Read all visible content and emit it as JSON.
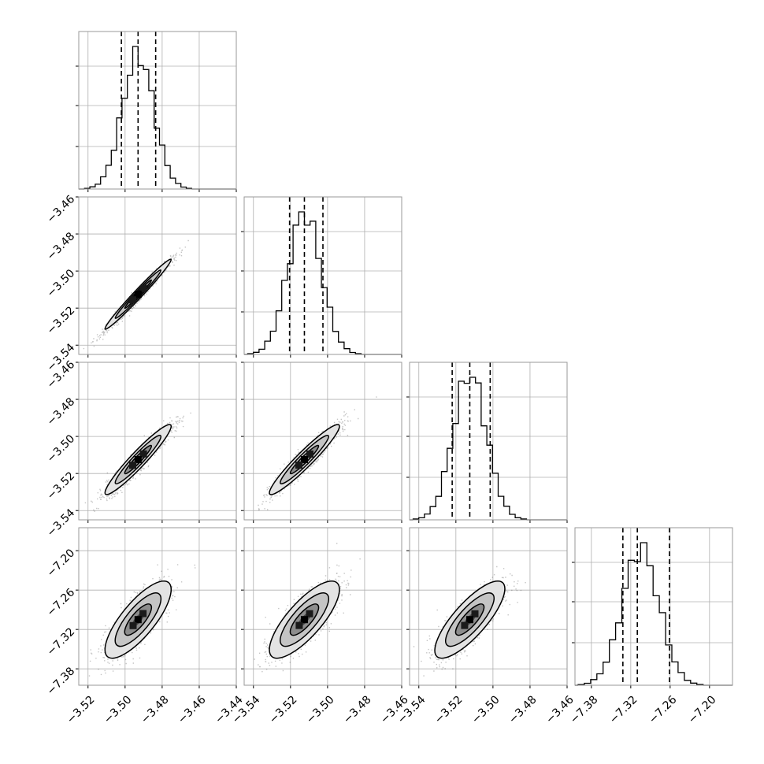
{
  "chart_data": {
    "type": "corner",
    "title": "",
    "parameters": [
      {
        "name": "",
        "range": [
          -3.525,
          -3.44
        ],
        "ticks": [
          -3.52,
          -3.5,
          -3.48,
          -3.46,
          -3.44
        ],
        "tick_labels": [
          "−3.52",
          "−3.50",
          "−3.48",
          "−3.46",
          "−3.44"
        ],
        "center": -3.493,
        "sigma": 0.0085,
        "quantiles": [
          -3.502,
          -3.493,
          -3.4835
        ]
      },
      {
        "name": "",
        "range": [
          -3.545,
          -3.46
        ],
        "ticks": [
          -3.54,
          -3.52,
          -3.5,
          -3.48,
          -3.46
        ],
        "tick_labels": [
          "−3.54",
          "−3.52",
          "−3.50",
          "−3.48",
          "−3.46"
        ],
        "center": -3.5125,
        "sigma": 0.009,
        "quantiles": [
          -3.5205,
          -3.5125,
          -3.5025
        ]
      },
      {
        "name": "",
        "range": [
          -3.545,
          -3.46
        ],
        "ticks": [
          -3.54,
          -3.52,
          -3.5,
          -3.48,
          -3.46
        ],
        "tick_labels": [
          "−3.54",
          "−3.52",
          "−3.50",
          "−3.48",
          "−3.46"
        ],
        "center": -3.5125,
        "sigma": 0.009,
        "quantiles": [
          -3.522,
          -3.5125,
          -3.5015
        ]
      },
      {
        "name": "",
        "range": [
          -7.405,
          -7.165
        ],
        "ticks": [
          -7.38,
          -7.32,
          -7.26,
          -7.2
        ],
        "tick_labels": [
          "−7.38",
          "−7.32",
          "−7.26",
          "−7.20"
        ],
        "center": -7.305,
        "sigma": 0.028,
        "quantiles": [
          -7.332,
          -7.31,
          -7.261
        ]
      }
    ],
    "correlations": [
      {
        "i": 1,
        "j": 0,
        "rho": 0.985
      },
      {
        "i": 2,
        "j": 0,
        "rho": 0.95
      },
      {
        "i": 2,
        "j": 1,
        "rho": 0.95
      },
      {
        "i": 3,
        "j": 0,
        "rho": 0.78
      },
      {
        "i": 3,
        "j": 1,
        "rho": 0.78
      },
      {
        "i": 3,
        "j": 2,
        "rho": 0.8
      }
    ],
    "diagonal": "1-D marginal histograms with dashed lines at the 16th, 50th and 84th percentiles",
    "off_diagonal": "2-D scatter of samples with filled density contours",
    "grid": true,
    "colors": {
      "line": "#000000",
      "frame": "#9a9a9a",
      "grid": "#b0b0b0",
      "scatter": "#555555",
      "fill_outer": "#e3e3e3",
      "fill_mid": "#c4c4c4",
      "fill_inner": "#8c8c8c",
      "fill_core": "#4a4a4a"
    }
  }
}
